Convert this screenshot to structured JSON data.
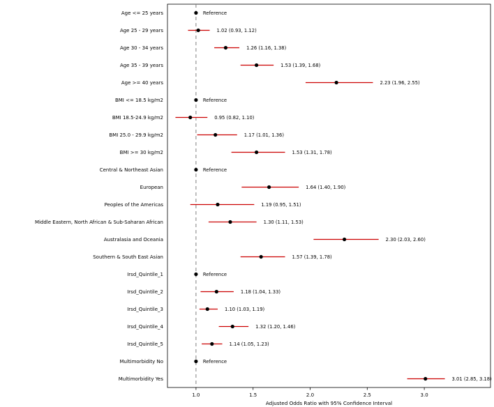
{
  "chart_data": {
    "type": "scatter",
    "subtype": "forest-plot",
    "title": "",
    "xlabel": "Adjusted Odds Ratio with 95% Confidence Interval",
    "ylabel": "",
    "xlim": [
      0.75,
      3.58
    ],
    "xticks": [
      1.0,
      1.5,
      2.0,
      2.5,
      3.0
    ],
    "reference_line_x": 1.0,
    "grid": false,
    "legend": "none",
    "colors": {
      "ci_line": "#cc0000",
      "point": "#000000",
      "reference_line": "#7f7f7f",
      "frame": "#000000",
      "background": "#ffffff"
    },
    "rows": [
      {
        "label": "Age <= 25 years",
        "value": 1.0,
        "lower": null,
        "upper": null,
        "annotation": "Reference",
        "reference": true
      },
      {
        "label": "Age 25 - 29 years",
        "value": 1.02,
        "lower": 0.93,
        "upper": 1.12,
        "annotation": "1.02 (0.93, 1.12)",
        "reference": false
      },
      {
        "label": "Age 30 - 34 years",
        "value": 1.26,
        "lower": 1.16,
        "upper": 1.38,
        "annotation": "1.26 (1.16, 1.38)",
        "reference": false
      },
      {
        "label": "Age 35 - 39 years",
        "value": 1.53,
        "lower": 1.39,
        "upper": 1.68,
        "annotation": "1.53 (1.39, 1.68)",
        "reference": false
      },
      {
        "label": "Age >= 40 years",
        "value": 2.23,
        "lower": 1.96,
        "upper": 2.55,
        "annotation": "2.23 (1.96, 2.55)",
        "reference": false
      },
      {
        "label": "BMI <= 18.5 kg/m2",
        "value": 1.0,
        "lower": null,
        "upper": null,
        "annotation": "Reference",
        "reference": true
      },
      {
        "label": "BMI 18.5-24.9 kg/m2",
        "value": 0.95,
        "lower": 0.82,
        "upper": 1.1,
        "annotation": "0.95 (0.82, 1.10)",
        "reference": false
      },
      {
        "label": "BMI 25.0 - 29.9 kg/m2",
        "value": 1.17,
        "lower": 1.01,
        "upper": 1.36,
        "annotation": "1.17 (1.01, 1.36)",
        "reference": false
      },
      {
        "label": "BMI >= 30 kg/m2",
        "value": 1.53,
        "lower": 1.31,
        "upper": 1.78,
        "annotation": "1.53 (1.31, 1.78)",
        "reference": false
      },
      {
        "label": "Central & Northeast Asian",
        "value": 1.0,
        "lower": null,
        "upper": null,
        "annotation": "Reference",
        "reference": true
      },
      {
        "label": "European",
        "value": 1.64,
        "lower": 1.4,
        "upper": 1.9,
        "annotation": "1.64 (1.40, 1.90)",
        "reference": false
      },
      {
        "label": "Peoples of the Americas",
        "value": 1.19,
        "lower": 0.95,
        "upper": 1.51,
        "annotation": "1.19 (0.95, 1.51)",
        "reference": false
      },
      {
        "label": "Middle Eastern, North African & Sub-Saharan African",
        "value": 1.3,
        "lower": 1.11,
        "upper": 1.53,
        "annotation": "1.30 (1.11, 1.53)",
        "reference": false
      },
      {
        "label": "Australasia and Oceania",
        "value": 2.3,
        "lower": 2.03,
        "upper": 2.6,
        "annotation": "2.30 (2.03, 2.60)",
        "reference": false
      },
      {
        "label": "Southern & South East Asian",
        "value": 1.57,
        "lower": 1.39,
        "upper": 1.78,
        "annotation": "1.57 (1.39, 1.78)",
        "reference": false
      },
      {
        "label": "Irsd_Quintile_1",
        "value": 1.0,
        "lower": null,
        "upper": null,
        "annotation": "Reference",
        "reference": true
      },
      {
        "label": "Irsd_Quintile_2",
        "value": 1.18,
        "lower": 1.04,
        "upper": 1.33,
        "annotation": "1.18 (1.04, 1.33)",
        "reference": false
      },
      {
        "label": "Irsd_Quintile_3",
        "value": 1.1,
        "lower": 1.03,
        "upper": 1.19,
        "annotation": "1.10 (1.03, 1.19)",
        "reference": false
      },
      {
        "label": "Irsd_Quintile_4",
        "value": 1.32,
        "lower": 1.2,
        "upper": 1.46,
        "annotation": "1.32 (1.20, 1.46)",
        "reference": false
      },
      {
        "label": "Irsd_Quintile_5",
        "value": 1.14,
        "lower": 1.05,
        "upper": 1.23,
        "annotation": "1.14 (1.05, 1.23)",
        "reference": false
      },
      {
        "label": "Multimorbidity No",
        "value": 1.0,
        "lower": null,
        "upper": null,
        "annotation": "Reference",
        "reference": true
      },
      {
        "label": "Multimorbidity Yes",
        "value": 3.01,
        "lower": 2.85,
        "upper": 3.18,
        "annotation": "3.01 (2.85, 3.18)",
        "reference": false
      }
    ],
    "tick_label_format": "one-decimal"
  }
}
